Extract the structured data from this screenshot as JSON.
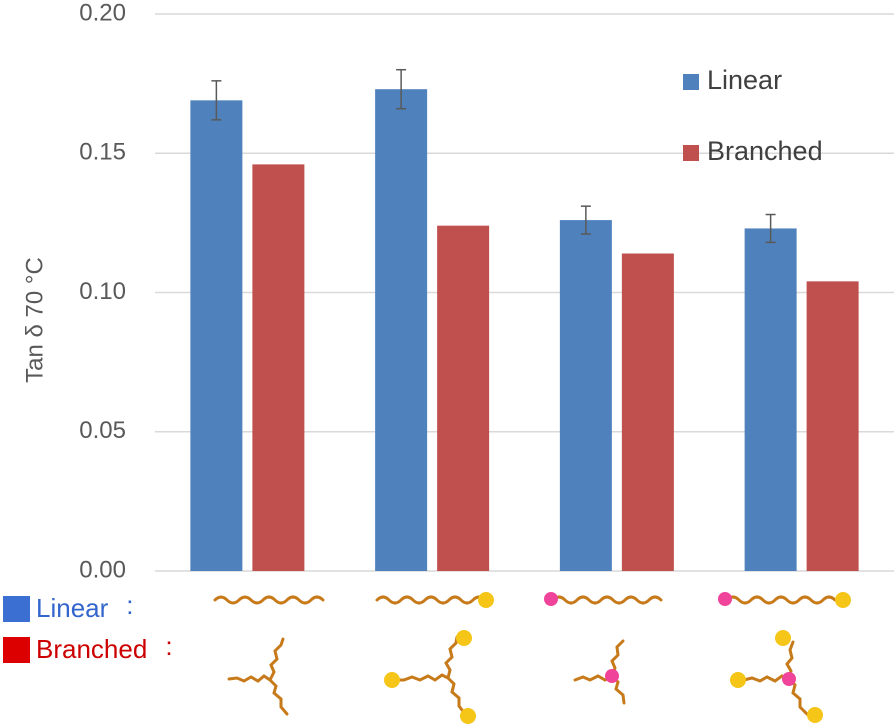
{
  "chart_data": {
    "type": "bar",
    "y_label": "Tan δ  70 °C",
    "categories": [
      null,
      null,
      null,
      null
    ],
    "series": [
      {
        "name": "Linear",
        "color": "#4f81bd",
        "values": [
          0.169,
          0.173,
          0.126,
          0.123
        ],
        "errors": [
          0.007,
          0.007,
          0.005,
          0.005
        ]
      },
      {
        "name": "Branched",
        "color": "#c0504d",
        "values": [
          0.146,
          0.124,
          0.114,
          0.104
        ]
      }
    ],
    "ylim": [
      0,
      0.2
    ],
    "yticks": [
      {
        "value": 0,
        "label": "0.00"
      },
      {
        "value": 0.05,
        "label": "0.05"
      },
      {
        "value": 0.1,
        "label": "0.10"
      },
      {
        "value": 0.15,
        "label": "0.15"
      },
      {
        "value": 0.2,
        "label": "0.20"
      }
    ],
    "grid": true,
    "legend": "top-right",
    "structure_rows": [
      {
        "label": "Linear",
        "color": "#3366cc",
        "swatch": "#3b6fd1"
      },
      {
        "label": "Branched",
        "color": "#cc0000",
        "swatch": "#dd0000"
      }
    ],
    "separator": ":"
  }
}
